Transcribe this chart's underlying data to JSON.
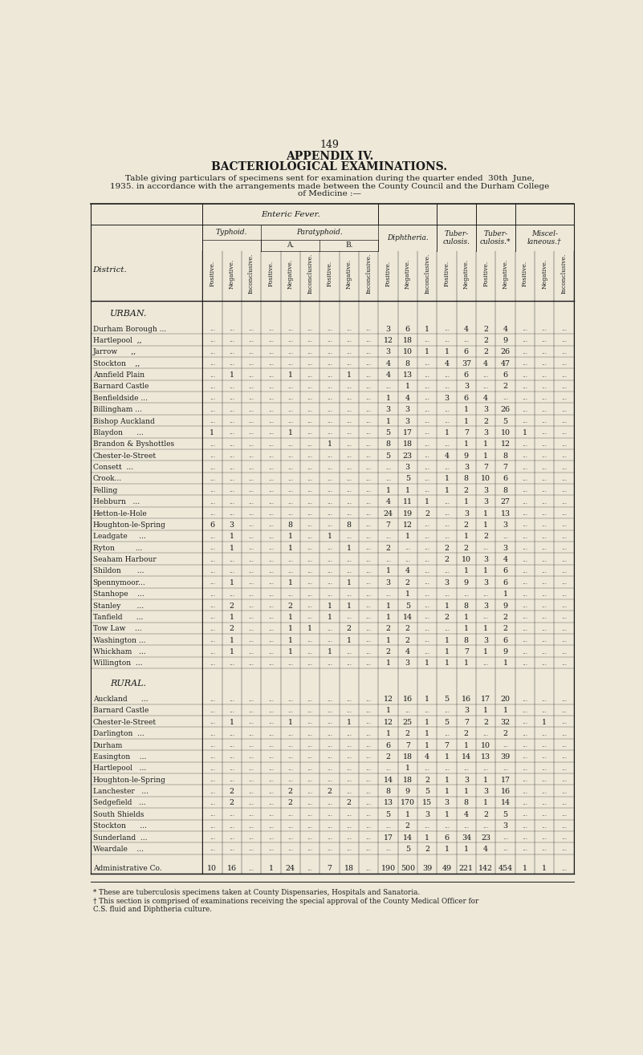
{
  "page_number": "149",
  "title1": "APPENDIX IV.",
  "title2": "BACTERIOLOGICAL EXAMINATIONS.",
  "subtitle_lines": [
    "Table giving particulars of specimens sent for examination during the quarter ended  30th  June,",
    "1935. in accordance with the arrangements made between the County Council and the Durham College",
    "of Medicine :—"
  ],
  "bg_color": "#EDE8D8",
  "text_color": "#1a1a1a",
  "col_sub": [
    "Positive.",
    "Negative.",
    "Inconclusive.",
    "Positive.",
    "Negative.",
    "Inconclusive.",
    "Positive.",
    "Negative.",
    "Inconclusive.",
    "Positive.",
    "Negative.",
    "Inconclusive.",
    "Positive.",
    "Negative.",
    "Positive.",
    "Negative.",
    "Positive.",
    "Negative.",
    "Inconclusive."
  ],
  "section_urban": "URBAN.",
  "section_rural": "RURAL.",
  "rows_urban": [
    [
      "Durham Borough ...",
      "",
      "",
      "",
      "",
      "",
      "",
      "",
      "",
      "",
      "3",
      "6",
      "1",
      "",
      "4",
      "2",
      "4",
      "",
      "",
      ""
    ],
    [
      "Hartlepool  ,,",
      "",
      "",
      "",
      "",
      "",
      "",
      "",
      "",
      "",
      "12",
      "18",
      "",
      "",
      "",
      "2",
      "9",
      "",
      "",
      ""
    ],
    [
      "Jarrow      ,,",
      "",
      "",
      "",
      "",
      "",
      "",
      "",
      "",
      "",
      "3",
      "10",
      "1",
      "1",
      "6",
      "2",
      "26",
      "",
      "",
      ""
    ],
    [
      "Stockton    ,,",
      "",
      "",
      "",
      "",
      "",
      "",
      "",
      "",
      "",
      "4",
      "8",
      "",
      "4",
      "37",
      "4",
      "47",
      "",
      "",
      ""
    ],
    [
      "Annfield Plain",
      "",
      "1",
      "",
      "",
      "1",
      "",
      "",
      "1",
      "",
      "4",
      "13",
      "",
      "",
      "6",
      "",
      "6",
      "",
      "",
      ""
    ],
    [
      "Barnard Castle",
      "",
      "",
      "",
      "",
      "",
      "",
      "",
      "",
      "",
      "",
      "1",
      "",
      "",
      "3",
      "",
      "2",
      "",
      "",
      ""
    ],
    [
      "Benfieldside ...",
      "",
      "",
      "",
      "",
      "",
      "",
      "",
      "",
      "",
      "1",
      "4",
      "",
      "3",
      "6",
      "4",
      "",
      "",
      "",
      ""
    ],
    [
      "Billingham ...",
      "",
      "",
      "",
      "",
      "",
      "",
      "",
      "",
      "",
      "3",
      "3",
      "",
      "",
      "1",
      "3",
      "26",
      "",
      "",
      ""
    ],
    [
      "Bishop Auckland",
      "",
      "",
      "",
      "",
      "",
      "",
      "",
      "",
      "",
      "1",
      "3",
      "",
      "",
      "1",
      "2",
      "5",
      "",
      "",
      ""
    ],
    [
      "Blaydon      ...",
      "1",
      "",
      "",
      "",
      "1",
      "",
      "",
      "",
      "",
      "5",
      "17",
      "",
      "1",
      "7",
      "3",
      "10",
      "1",
      "",
      ""
    ],
    [
      "Brandon & Byshottles",
      "",
      "",
      "",
      "",
      "",
      "",
      "1",
      "",
      "",
      "8",
      "18",
      "",
      "",
      "1",
      "1",
      "12",
      "",
      "",
      ""
    ],
    [
      "Chester-le-Street",
      "",
      "",
      "",
      "",
      "",
      "",
      "",
      "",
      "",
      "5",
      "23",
      "",
      "4",
      "9",
      "1",
      "8",
      "",
      "",
      ""
    ],
    [
      "Consett  ...",
      "",
      "",
      "",
      "",
      "",
      "",
      "",
      "",
      "",
      "",
      "3",
      "",
      "",
      "3",
      "7",
      "7",
      "",
      "",
      ""
    ],
    [
      "Crook...",
      "",
      "",
      "",
      "",
      "",
      "",
      "",
      "",
      "",
      "",
      "5",
      "",
      "1",
      "8",
      "10",
      "6",
      "",
      "",
      ""
    ],
    [
      "Felling",
      "",
      "",
      "",
      "",
      "",
      "",
      "",
      "",
      "",
      "1",
      "1",
      "",
      "1",
      "2",
      "3",
      "8",
      "",
      "",
      ""
    ],
    [
      "Hebburn   ...",
      "",
      "",
      "",
      "",
      "",
      "",
      "",
      "",
      "",
      "4",
      "11",
      "1",
      "",
      "1",
      "3",
      "27",
      "",
      "",
      ""
    ],
    [
      "Hetton-le-Hole",
      "",
      "",
      "",
      "",
      "",
      "",
      "",
      "",
      "",
      "24",
      "19",
      "2",
      "",
      "3",
      "1",
      "13",
      "",
      "",
      ""
    ],
    [
      "Houghton-le-Spring",
      "6",
      "3",
      "",
      "",
      "8",
      "",
      "",
      "8",
      "",
      "7",
      "12",
      "",
      "",
      "2",
      "1",
      "3",
      "",
      "",
      ""
    ],
    [
      "Leadgate     ...",
      "",
      "1",
      "",
      "",
      "1",
      "",
      "1",
      "",
      "",
      "",
      "1",
      "",
      "",
      "1",
      "2",
      "",
      "",
      "",
      ""
    ],
    [
      "Ryton         ...",
      "",
      "1",
      "",
      "",
      "1",
      "",
      "",
      "1",
      "",
      "2",
      "",
      "",
      "2",
      "2",
      "",
      "3",
      "",
      "",
      ""
    ],
    [
      "Seaham Harbour",
      "",
      "",
      "",
      "",
      "",
      "",
      "",
      "",
      "",
      "",
      "",
      "",
      "2",
      "10",
      "3",
      "4",
      "",
      "",
      ""
    ],
    [
      "Shildon       ...",
      "",
      "",
      "",
      "",
      "",
      "",
      "",
      "",
      "",
      "1",
      "4",
      "",
      "",
      "1",
      "1",
      "6",
      "",
      "",
      ""
    ],
    [
      "Spennymoor...",
      "",
      "1",
      "",
      "",
      "1",
      "",
      "",
      "1",
      "",
      "3",
      "2",
      "",
      "3",
      "9",
      "3",
      "6",
      "",
      "",
      ""
    ],
    [
      "Stanhope    ...",
      "",
      "",
      "",
      "",
      "",
      "",
      "",
      "",
      "",
      "",
      "1",
      "",
      "",
      "",
      "",
      "1",
      "",
      "",
      ""
    ],
    [
      "Stanley       ...",
      "",
      "2",
      "",
      "",
      "2",
      "",
      "1",
      "1",
      "",
      "1",
      "5",
      "",
      "1",
      "8",
      "3",
      "9",
      "",
      "",
      ""
    ],
    [
      "Tanfield      ...",
      "",
      "1",
      "",
      "",
      "1",
      "",
      "1",
      "",
      "",
      "1",
      "14",
      "",
      "2",
      "1",
      "",
      "2",
      "",
      "",
      ""
    ],
    [
      "Tow Law    ...",
      "",
      "2",
      "",
      "",
      "1",
      "1",
      "",
      "2",
      "",
      "2",
      "2",
      "",
      "",
      "1",
      "1",
      "2",
      "",
      "",
      ""
    ],
    [
      "Washington ...",
      "",
      "1",
      "",
      "",
      "1",
      "",
      "",
      "1",
      "",
      "1",
      "2",
      "",
      "1",
      "8",
      "3",
      "6",
      "",
      "",
      ""
    ],
    [
      "Whickham   ...",
      "",
      "1",
      "",
      "",
      "1",
      "",
      "1",
      "",
      "",
      "2",
      "4",
      "",
      "1",
      "7",
      "1",
      "9",
      "",
      "",
      ""
    ],
    [
      "Willington  ...",
      "",
      "",
      "",
      "",
      "",
      "",
      "",
      "",
      "",
      "1",
      "3",
      "1",
      "1",
      "1",
      "",
      "1",
      "",
      "",
      ""
    ]
  ],
  "rows_rural": [
    [
      "Auckland      ...",
      "",
      "",
      "",
      "",
      "",
      "",
      "",
      "",
      "",
      "12",
      "16",
      "1",
      "5",
      "16",
      "17",
      "20",
      "",
      "",
      ""
    ],
    [
      "Barnard Castle",
      "",
      "",
      "",
      "",
      "",
      "",
      "",
      "",
      "",
      "1",
      "",
      "",
      "",
      "3",
      "1",
      "1",
      "",
      "",
      ""
    ],
    [
      "Chester-le-Street",
      "",
      "1",
      "",
      "",
      "1",
      "",
      "",
      "1",
      "",
      "12",
      "25",
      "1",
      "5",
      "7",
      "2",
      "32",
      "",
      "1",
      ""
    ],
    [
      "Darlington  ...",
      "",
      "",
      "",
      "",
      "",
      "",
      "",
      "",
      "",
      "1",
      "2",
      "1",
      "",
      "2",
      "",
      "2",
      "",
      "",
      ""
    ],
    [
      "Durham",
      "",
      "",
      "",
      "",
      "",
      "",
      "",
      "",
      "",
      "6",
      "7",
      "1",
      "7",
      "1",
      "10",
      "",
      "",
      "",
      ""
    ],
    [
      "Easington    ...",
      "",
      "",
      "",
      "",
      "",
      "",
      "",
      "",
      "",
      "2",
      "18",
      "4",
      "1",
      "14",
      "13",
      "39",
      "",
      "",
      ""
    ],
    [
      "Hartlepool   ...",
      "",
      "",
      "",
      "",
      "",
      "",
      "",
      "",
      "",
      "",
      "1",
      "",
      "",
      "",
      "",
      "",
      "",
      "",
      ""
    ],
    [
      "Houghton-le-Spring",
      "",
      "",
      "",
      "",
      "",
      "",
      "",
      "",
      "",
      "14",
      "18",
      "2",
      "1",
      "3",
      "1",
      "17",
      "",
      "",
      ""
    ],
    [
      "Lanchester   ...",
      "",
      "2",
      "",
      "",
      "2",
      "",
      "2",
      "",
      "",
      "8",
      "9",
      "5",
      "1",
      "1",
      "3",
      "16",
      "",
      "",
      ""
    ],
    [
      "Sedgefield   ...",
      "",
      "2",
      "",
      "",
      "2",
      "",
      "",
      "2",
      "",
      "13",
      "170",
      "15",
      "3",
      "8",
      "1",
      "14",
      "",
      "",
      ""
    ],
    [
      "South Shields",
      "",
      "",
      "",
      "",
      "",
      "",
      "",
      "",
      "",
      "5",
      "1",
      "3",
      "1",
      "4",
      "2",
      "5",
      "",
      "",
      ""
    ],
    [
      "Stockton      ...",
      "",
      "",
      "",
      "",
      "",
      "",
      "",
      "",
      "",
      "",
      "2",
      "",
      "",
      "",
      "",
      "3",
      "",
      "",
      ""
    ],
    [
      "Sunderland  ...",
      "",
      "",
      "",
      "",
      "",
      "",
      "",
      "",
      "",
      "17",
      "14",
      "1",
      "6",
      "34",
      "23",
      "",
      "",
      "",
      ""
    ],
    [
      "Weardale    ...",
      "",
      "",
      "",
      "",
      "",
      "",
      "",
      "",
      "",
      "",
      "5",
      "2",
      "1",
      "1",
      "4",
      "",
      "",
      "",
      ""
    ]
  ],
  "row_admin": [
    "Administrative Co.",
    "10",
    "16",
    "",
    "1",
    "24",
    "",
    "7",
    "18",
    "",
    "190",
    "500",
    "39",
    "49",
    "221",
    "142",
    "454",
    "1",
    "1",
    ""
  ],
  "footnote1": "* These are tuberculosis specimens taken at County Dispensaries, Hospitals and Sanatoria.",
  "footnote2": "† This section is comprised of examinations receiving the special approval of the County Medical Officer for",
  "footnote3": "C.S. fluid and Diphtheria culture."
}
